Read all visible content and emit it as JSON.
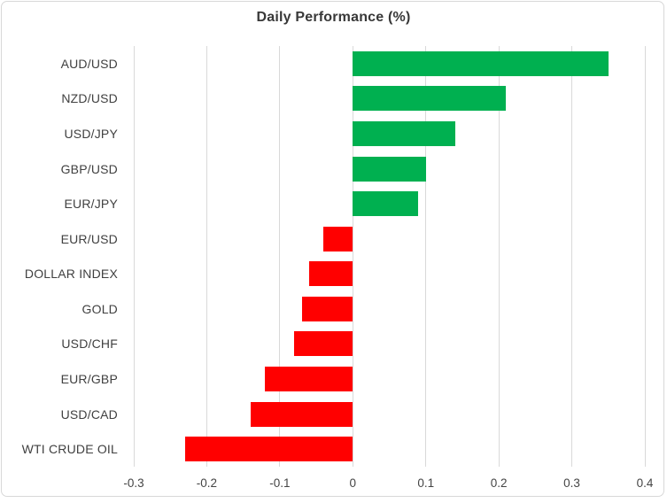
{
  "title": "Daily Performance (%)",
  "chart_data": {
    "type": "bar",
    "orientation": "horizontal",
    "title": "Daily Performance (%)",
    "categories": [
      "AUD/USD",
      "NZD/USD",
      "USD/JPY",
      "GBP/USD",
      "EUR/JPY",
      "EUR/USD",
      "DOLLAR INDEX",
      "GOLD",
      "USD/CHF",
      "EUR/GBP",
      "USD/CAD",
      "WTI CRUDE OIL"
    ],
    "values": [
      0.35,
      0.21,
      0.14,
      0.1,
      0.09,
      -0.04,
      -0.06,
      -0.07,
      -0.08,
      -0.12,
      -0.14,
      -0.23
    ],
    "xlabel": "",
    "ylabel": "",
    "xlim": [
      -0.3,
      0.4
    ],
    "x_ticks": [
      -0.3,
      -0.2,
      -0.1,
      0,
      0.1,
      0.2,
      0.3,
      0.4
    ],
    "x_tick_labels": [
      "-0.3",
      "-0.2",
      "-0.1",
      "0",
      "0.1",
      "0.2",
      "0.3",
      "0.4"
    ],
    "grid": true,
    "legend": false,
    "colors": {
      "positive": "#00B050",
      "negative": "#FF0000",
      "gridline": "#D9D9D9",
      "title_text": "#383838",
      "axis_text": "#404040",
      "frame_border": "#D8D8D8",
      "background": "#FFFFFF"
    }
  }
}
